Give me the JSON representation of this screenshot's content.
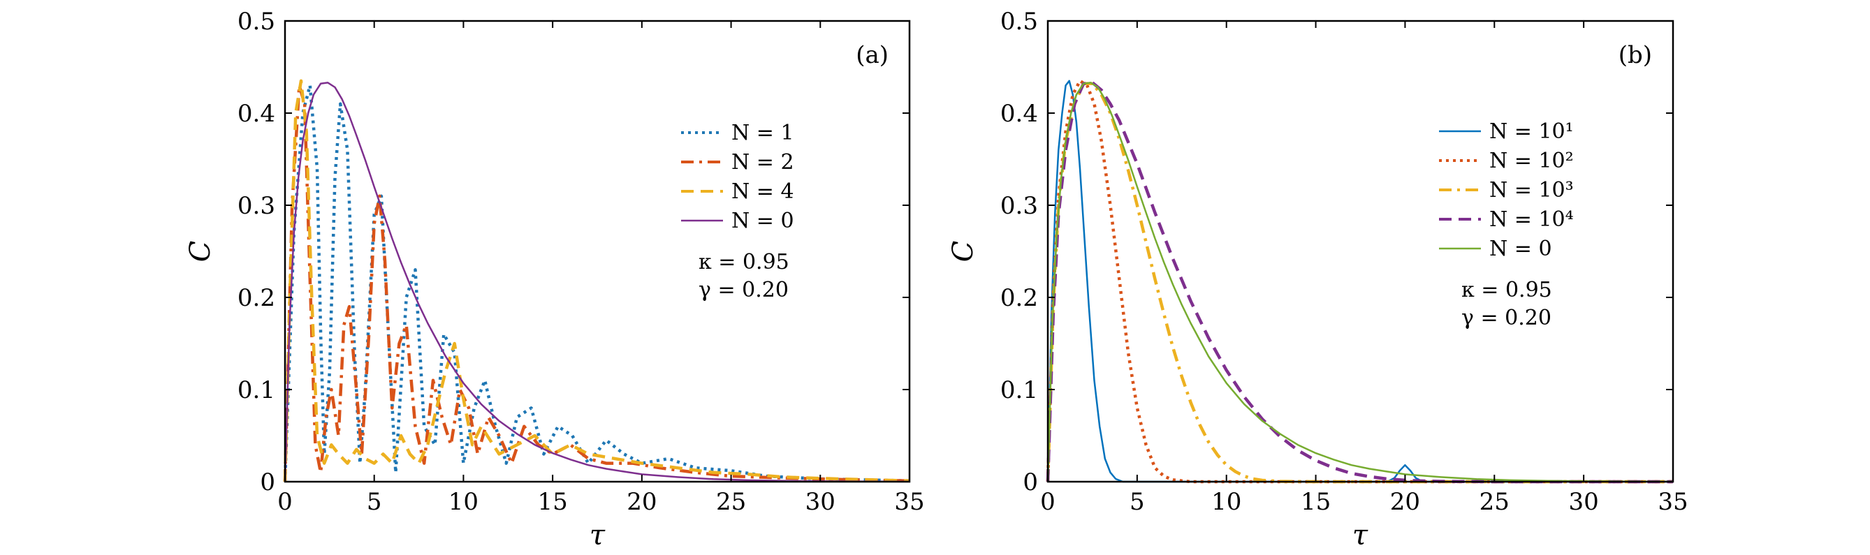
{
  "chart_data": [
    {
      "panel": "(a)",
      "type": "line",
      "xlabel": "τ",
      "ylabel": "C",
      "xlim": [
        0,
        35
      ],
      "ylim": [
        0,
        0.5
      ],
      "xticks": [
        "0",
        "5",
        "10",
        "15",
        "20",
        "25",
        "30",
        "35"
      ],
      "yticks": [
        "0",
        "0.1",
        "0.2",
        "0.3",
        "0.4",
        "0.5"
      ],
      "grid": false,
      "legend_position": "right-middle",
      "legend": [
        "N = 1",
        "N = 2",
        "N = 4",
        "N = 0"
      ],
      "annotation": [
        "κ = 0.95",
        "γ = 0.20"
      ],
      "series": [
        {
          "name": "N = 1",
          "color": "#1f77b4",
          "dash": "dotted",
          "x": [
            0,
            0.5,
            1.0,
            1.4,
            1.8,
            2.0,
            2.2,
            2.5,
            2.8,
            3.1,
            3.5,
            3.9,
            4.2,
            4.5,
            5.0,
            5.4,
            5.8,
            6.2,
            6.8,
            7.3,
            7.8,
            8.4,
            8.9,
            9.5,
            10.0,
            10.6,
            11.2,
            11.8,
            12.4,
            13.0,
            13.8,
            14.5,
            15.3,
            16.1,
            17.0,
            18.0,
            19.0,
            20.0,
            21.5,
            23.0,
            25.0,
            27.0,
            30.0,
            35.0
          ],
          "y": [
            0,
            0.27,
            0.4,
            0.43,
            0.34,
            0.16,
            0.03,
            0.12,
            0.33,
            0.41,
            0.36,
            0.14,
            0.02,
            0.1,
            0.29,
            0.31,
            0.16,
            0.01,
            0.2,
            0.23,
            0.06,
            0.04,
            0.16,
            0.14,
            0.02,
            0.08,
            0.11,
            0.06,
            0.02,
            0.07,
            0.08,
            0.03,
            0.06,
            0.05,
            0.02,
            0.045,
            0.03,
            0.02,
            0.025,
            0.015,
            0.012,
            0.006,
            0.003,
            0.001
          ]
        },
        {
          "name": "N = 2",
          "color": "#d95319",
          "dash": "dashdot",
          "x": [
            0,
            0.4,
            0.8,
            1.1,
            1.4,
            1.7,
            2.0,
            2.3,
            2.6,
            3.0,
            3.3,
            3.6,
            4.0,
            4.3,
            4.7,
            5.0,
            5.3,
            5.6,
            6.0,
            6.4,
            6.8,
            7.3,
            7.8,
            8.3,
            8.8,
            9.3,
            9.8,
            10.3,
            10.8,
            11.4,
            12.0,
            12.7,
            13.4,
            14.2,
            15.0,
            16.0,
            17.0,
            18.0,
            19.5,
            21.0,
            23.0,
            25.0,
            28.0,
            32.0,
            35.0
          ],
          "y": [
            0,
            0.3,
            0.43,
            0.41,
            0.22,
            0.04,
            0.01,
            0.07,
            0.1,
            0.05,
            0.17,
            0.19,
            0.1,
            0.03,
            0.16,
            0.28,
            0.31,
            0.24,
            0.08,
            0.15,
            0.17,
            0.06,
            0.02,
            0.11,
            0.07,
            0.04,
            0.1,
            0.08,
            0.03,
            0.07,
            0.05,
            0.02,
            0.06,
            0.04,
            0.03,
            0.04,
            0.025,
            0.02,
            0.02,
            0.015,
            0.01,
            0.006,
            0.004,
            0.002,
            0.001
          ]
        },
        {
          "name": "N = 4",
          "color": "#edb120",
          "dash": "dashed",
          "x": [
            0,
            0.3,
            0.6,
            0.9,
            1.2,
            1.5,
            1.8,
            2.2,
            2.6,
            3.0,
            3.5,
            4.0,
            4.5,
            5.0,
            5.5,
            6.0,
            6.5,
            7.0,
            7.5,
            8.0,
            8.5,
            9.0,
            9.5,
            10.0,
            10.5,
            11.0,
            12.0,
            13.0,
            14.0,
            15.0,
            16.0,
            17.0,
            18.5,
            20.0,
            22.0,
            24.0,
            26.0,
            28.0,
            31.0,
            35.0
          ],
          "y": [
            0,
            0.22,
            0.4,
            0.435,
            0.38,
            0.2,
            0.05,
            0.02,
            0.04,
            0.03,
            0.02,
            0.035,
            0.025,
            0.02,
            0.03,
            0.02,
            0.05,
            0.03,
            0.02,
            0.04,
            0.08,
            0.12,
            0.15,
            0.09,
            0.04,
            0.06,
            0.03,
            0.04,
            0.05,
            0.03,
            0.04,
            0.03,
            0.025,
            0.02,
            0.015,
            0.01,
            0.008,
            0.005,
            0.003,
            0.001
          ]
        },
        {
          "name": "N = 0",
          "color": "#7e2f8e",
          "dash": "solid",
          "x": [
            0,
            0.25,
            0.5,
            0.75,
            1.0,
            1.3,
            1.6,
            2.0,
            2.4,
            2.8,
            3.2,
            3.6,
            4.0,
            4.5,
            5.0,
            5.5,
            6.0,
            6.5,
            7.0,
            7.5,
            8.0,
            9.0,
            10.0,
            11.0,
            12.0,
            13.0,
            14.0,
            15.0,
            16.0,
            17.0,
            18.0,
            19.0,
            20.0,
            22.0,
            24.0,
            26.0,
            28.0,
            30.0,
            32.0,
            35.0
          ],
          "y": [
            0,
            0.17,
            0.27,
            0.33,
            0.37,
            0.4,
            0.42,
            0.432,
            0.433,
            0.428,
            0.415,
            0.397,
            0.376,
            0.349,
            0.32,
            0.292,
            0.264,
            0.238,
            0.214,
            0.192,
            0.172,
            0.136,
            0.107,
            0.084,
            0.066,
            0.052,
            0.04,
            0.031,
            0.024,
            0.018,
            0.014,
            0.011,
            0.008,
            0.005,
            0.0028,
            0.0016,
            0.0009,
            0.0005,
            0.0003,
            0.0001
          ]
        }
      ]
    },
    {
      "panel": "(b)",
      "type": "line",
      "xlabel": "τ",
      "ylabel": "C",
      "xlim": [
        0,
        35
      ],
      "ylim": [
        0,
        0.5
      ],
      "xticks": [
        "0",
        "5",
        "10",
        "15",
        "20",
        "25",
        "30",
        "35"
      ],
      "yticks": [
        "0",
        "0.1",
        "0.2",
        "0.3",
        "0.4",
        "0.5"
      ],
      "grid": false,
      "legend_position": "right-upper",
      "legend": [
        "N = 10¹",
        "N = 10²",
        "N = 10³",
        "N = 10⁴",
        "N = 0"
      ],
      "annotation": [
        "κ = 0.95",
        "γ = 0.20"
      ],
      "series": [
        {
          "name": "N = 10¹",
          "color": "#0072bd",
          "dash": "solid",
          "x": [
            0,
            0.2,
            0.4,
            0.6,
            0.8,
            1.0,
            1.2,
            1.4,
            1.6,
            1.8,
            2.0,
            2.3,
            2.6,
            2.9,
            3.2,
            3.5,
            3.8,
            4.2,
            5.0,
            10.0,
            19.0,
            19.4,
            19.7,
            20.0,
            20.3,
            20.6,
            21.0,
            35.0
          ],
          "y": [
            0,
            0.18,
            0.29,
            0.36,
            0.4,
            0.43,
            0.435,
            0.42,
            0.39,
            0.34,
            0.28,
            0.19,
            0.11,
            0.06,
            0.025,
            0.01,
            0.003,
            0.0,
            0.0,
            0.0,
            0.0,
            0.004,
            0.012,
            0.018,
            0.012,
            0.004,
            0.0,
            0.0
          ]
        },
        {
          "name": "N = 10²",
          "color": "#d95319",
          "dash": "dotted",
          "x": [
            0,
            0.3,
            0.6,
            1.0,
            1.4,
            1.8,
            2.2,
            2.6,
            3.0,
            3.5,
            4.0,
            4.5,
            5.0,
            5.5,
            6.0,
            6.5,
            7.0,
            8.0,
            10.0,
            35.0
          ],
          "y": [
            0,
            0.2,
            0.31,
            0.38,
            0.42,
            0.435,
            0.43,
            0.41,
            0.37,
            0.3,
            0.22,
            0.14,
            0.08,
            0.04,
            0.015,
            0.006,
            0.002,
            0.0,
            0.0,
            0.0
          ],
          "linewidth": "thick"
        },
        {
          "name": "N = 10³",
          "color": "#edb120",
          "dash": "dashdot",
          "x": [
            0,
            0.3,
            0.6,
            1.0,
            1.5,
            2.0,
            2.5,
            3.0,
            3.5,
            4.0,
            4.5,
            5.0,
            5.5,
            6.0,
            6.5,
            7.0,
            7.5,
            8.0,
            8.5,
            9.0,
            9.5,
            10.0,
            10.5,
            11.0,
            11.5,
            12.0,
            13.0,
            14.0,
            16.0,
            35.0
          ],
          "y": [
            0,
            0.19,
            0.3,
            0.37,
            0.41,
            0.432,
            0.432,
            0.42,
            0.4,
            0.372,
            0.338,
            0.3,
            0.26,
            0.22,
            0.182,
            0.146,
            0.114,
            0.086,
            0.062,
            0.043,
            0.029,
            0.018,
            0.011,
            0.006,
            0.003,
            0.0015,
            0.0004,
            0.0001,
            0.0,
            0.0
          ]
        },
        {
          "name": "N = 10⁴",
          "color": "#7e2f8e",
          "dash": "dashed",
          "x": [
            0,
            0.3,
            0.6,
            1.0,
            1.5,
            2.0,
            2.5,
            3.0,
            3.5,
            4.0,
            5.0,
            6.0,
            7.0,
            8.0,
            9.0,
            10.0,
            11.0,
            12.0,
            13.0,
            14.0,
            15.0,
            16.0,
            17.0,
            18.0,
            19.0,
            20.0,
            21.0,
            22.0,
            23.0,
            25.0,
            35.0
          ],
          "y": [
            0,
            0.18,
            0.29,
            0.36,
            0.41,
            0.432,
            0.433,
            0.425,
            0.41,
            0.392,
            0.345,
            0.292,
            0.242,
            0.196,
            0.156,
            0.121,
            0.092,
            0.068,
            0.049,
            0.034,
            0.023,
            0.015,
            0.009,
            0.0055,
            0.003,
            0.0016,
            0.0008,
            0.0004,
            0.0002,
            0.0,
            0.0
          ]
        },
        {
          "name": "N = 0",
          "color": "#77ac30",
          "dash": "solid",
          "x": [
            0,
            0.25,
            0.5,
            0.75,
            1.0,
            1.3,
            1.6,
            2.0,
            2.4,
            2.8,
            3.2,
            3.6,
            4.0,
            4.5,
            5.0,
            5.5,
            6.0,
            6.5,
            7.0,
            7.5,
            8.0,
            9.0,
            10.0,
            11.0,
            12.0,
            13.0,
            14.0,
            15.0,
            16.0,
            17.0,
            18.0,
            19.0,
            20.0,
            22.0,
            24.0,
            26.0,
            28.0,
            30.0,
            32.0,
            35.0
          ],
          "y": [
            0,
            0.17,
            0.27,
            0.33,
            0.37,
            0.4,
            0.42,
            0.432,
            0.433,
            0.428,
            0.415,
            0.397,
            0.376,
            0.349,
            0.32,
            0.292,
            0.264,
            0.238,
            0.214,
            0.192,
            0.172,
            0.136,
            0.107,
            0.084,
            0.066,
            0.052,
            0.04,
            0.031,
            0.024,
            0.018,
            0.014,
            0.011,
            0.008,
            0.005,
            0.0028,
            0.0016,
            0.0009,
            0.0005,
            0.0003,
            0.0001
          ]
        }
      ]
    }
  ]
}
